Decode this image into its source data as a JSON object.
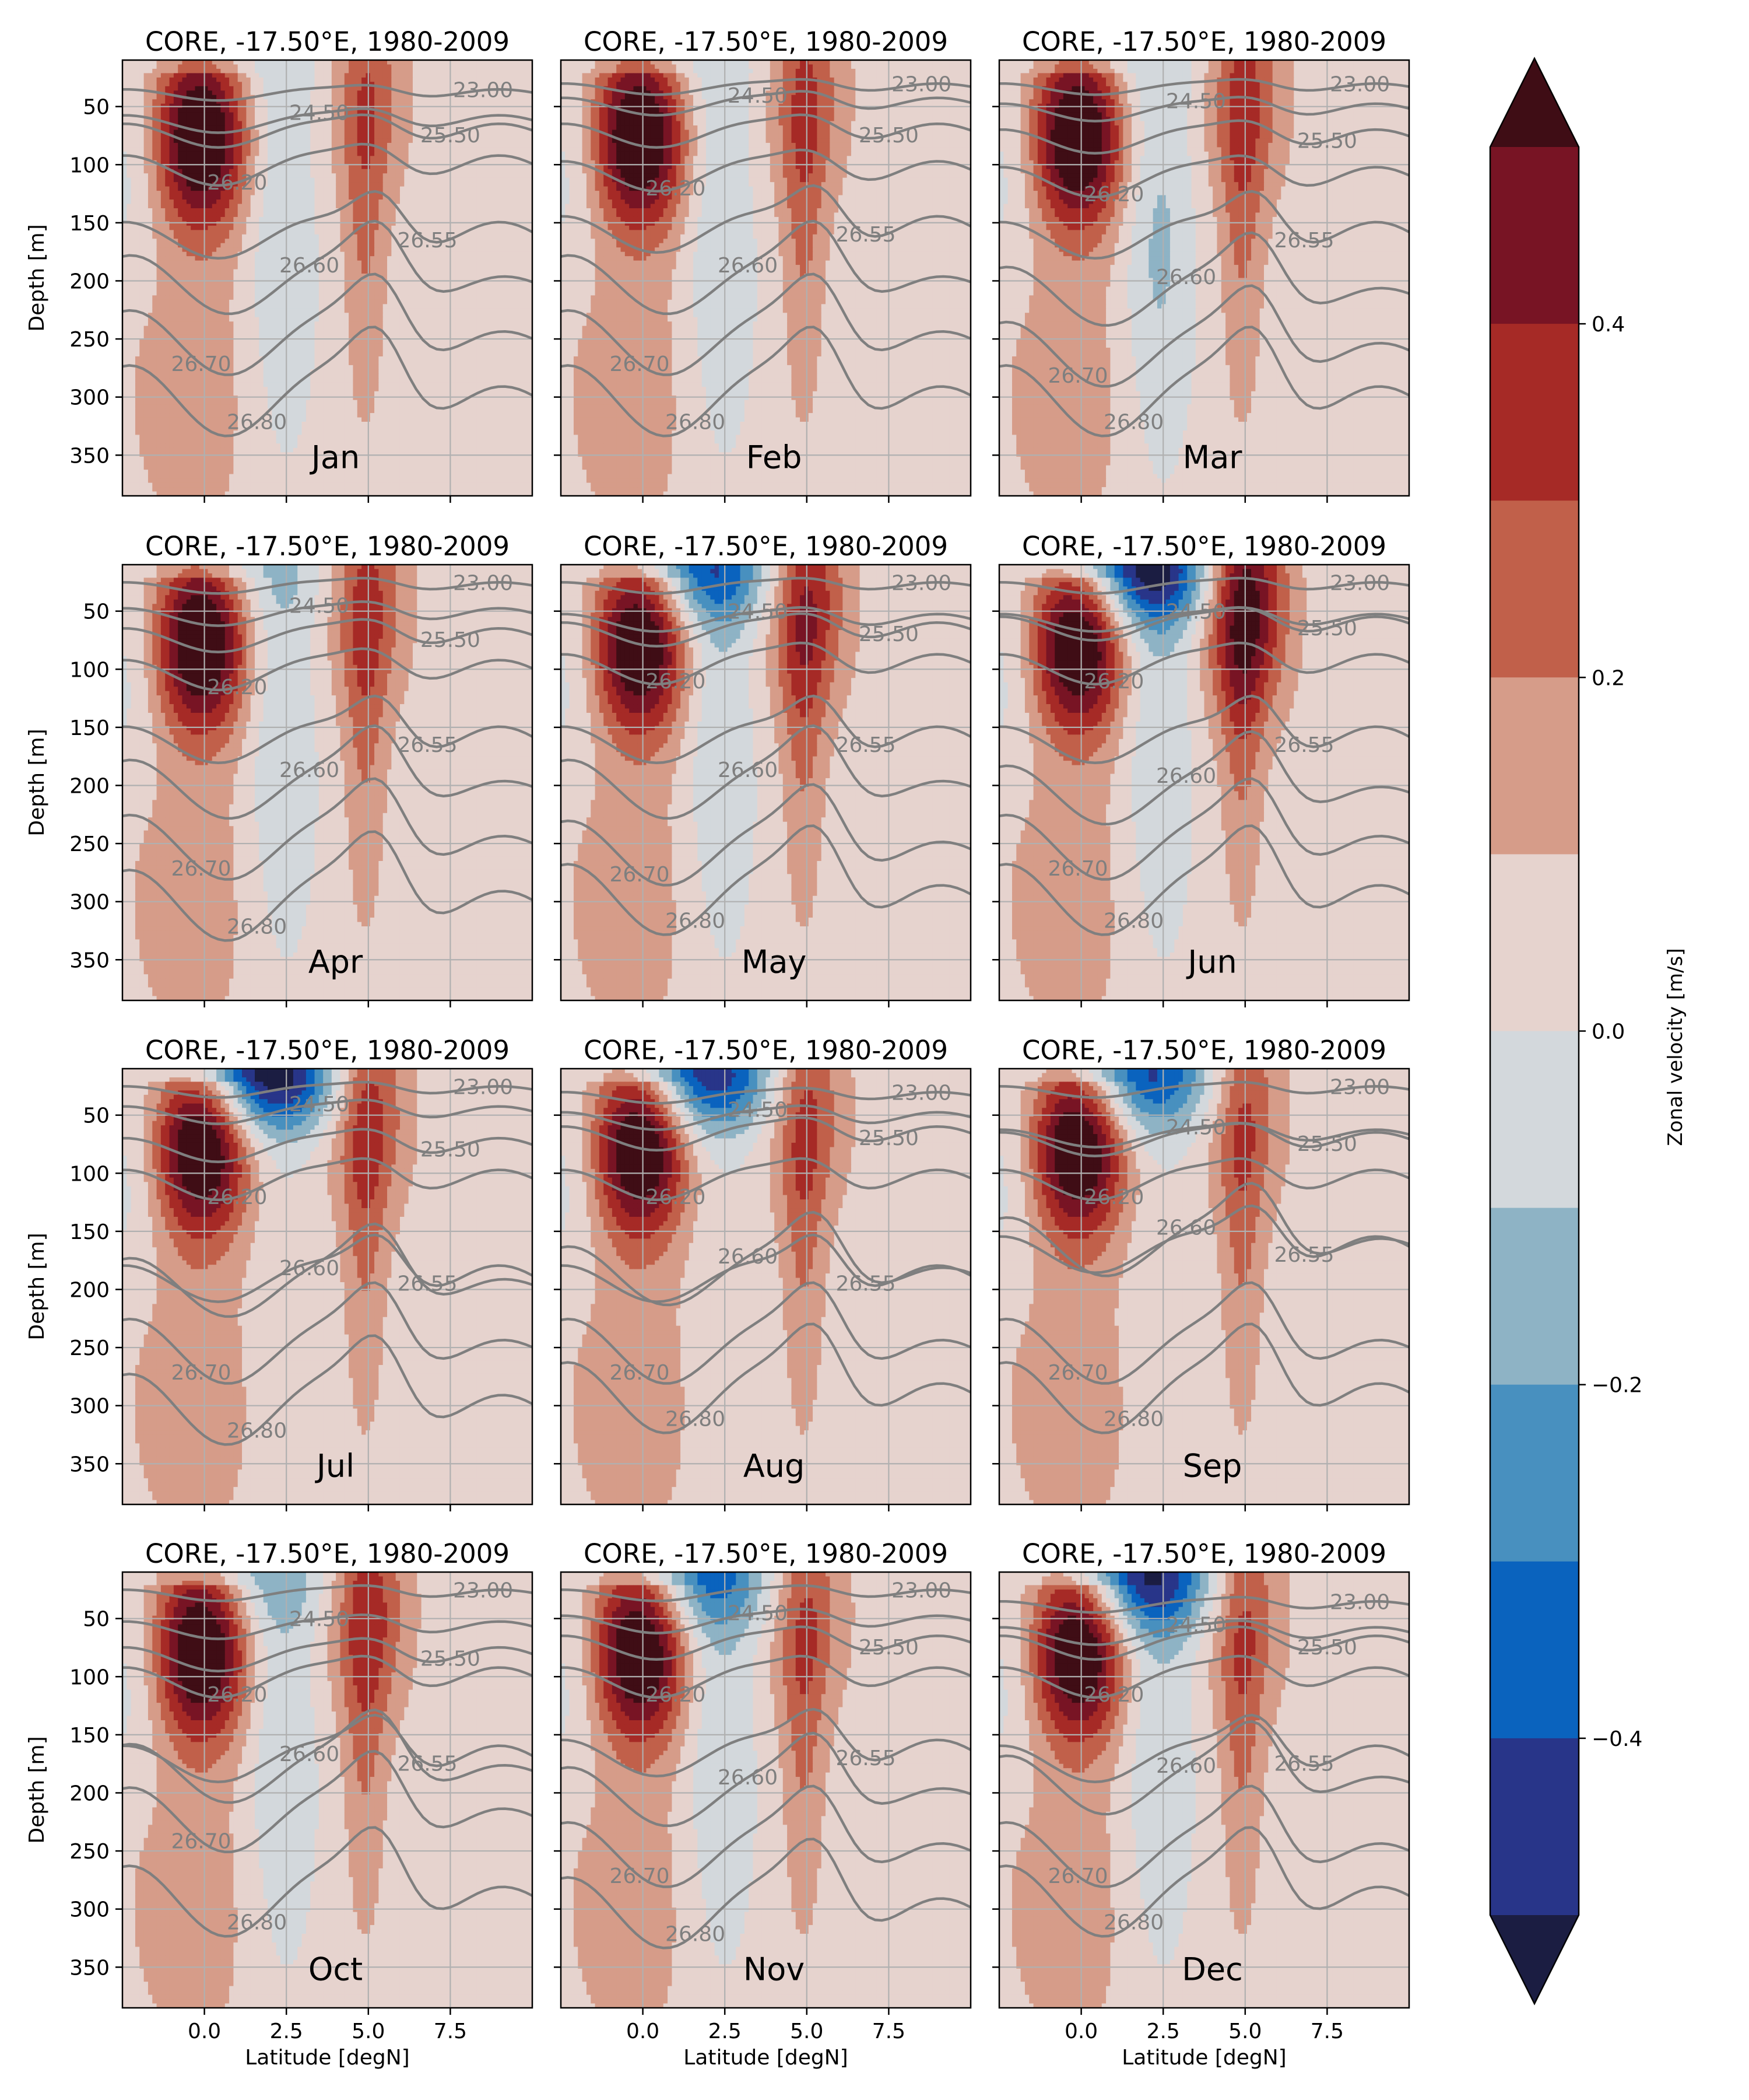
{
  "figure": {
    "colorbar": {
      "label": "Zonal velocity [m/s]",
      "ticks": [
        0.4,
        0.2,
        0.0,
        -0.2,
        -0.4
      ],
      "tick_labels": [
        "0.4",
        "0.2",
        "0.0",
        "−0.2",
        "−0.4"
      ],
      "levels": [
        -0.5,
        -0.4,
        -0.3,
        -0.2,
        -0.1,
        0.0,
        0.1,
        0.2,
        0.3,
        0.4,
        0.5
      ],
      "colors": [
        "#1b1d42",
        "#283589",
        "#0a63be",
        "#4890bf",
        "#8eb3c5",
        "#d3d8dc",
        "#e6d3ce",
        "#d69c89",
        "#c1604a",
        "#a62a26",
        "#781424",
        "#3f0d15"
      ]
    }
  },
  "chart_data": {
    "type": "heatmap",
    "description_values": "Zonal velocity (filled) with density contours (grey) at -17.50°E, climatological months 1980-2009",
    "xlabel": "Latitude [degN]",
    "ylabel": "Depth [m]",
    "xlim": [
      -2.5,
      10
    ],
    "ylim": [
      385,
      10
    ],
    "xticks": [
      0.0,
      2.5,
      5.0,
      7.5
    ],
    "xtick_labels": [
      "0.0",
      "2.5",
      "5.0",
      "7.5"
    ],
    "yticks": [
      50,
      100,
      150,
      200,
      250,
      300,
      350
    ],
    "ytick_labels": [
      "50",
      "100",
      "150",
      "200",
      "250",
      "300",
      "350"
    ],
    "grid": true,
    "panels": [
      {
        "title": "CORE,  -17.50°E, 1980-2009",
        "month": "Jan",
        "euc_speed": 0.55,
        "surface_westward": -0.05,
        "ncc_speed": 0.18,
        "sec_depth_jet": -0.15,
        "contours": [
          {
            "label": "23.00",
            "depth": 40
          },
          {
            "label": "24.50",
            "depth": 65
          },
          {
            "label": "25.50",
            "depth": 75
          },
          {
            "label": "26.20",
            "depth": 105
          },
          {
            "label": "26.55",
            "depth": 165
          },
          {
            "label": "26.60",
            "depth": 205
          },
          {
            "label": "26.70",
            "depth": 255
          },
          {
            "label": "26.80",
            "depth": 305
          }
        ]
      },
      {
        "title": "CORE,  -17.50°E, 1980-2009",
        "month": "Feb",
        "euc_speed": 0.55,
        "surface_westward": -0.05,
        "ncc_speed": 0.2,
        "sec_depth_jet": -0.15,
        "contours": [
          {
            "label": "23.00",
            "depth": 35
          },
          {
            "label": "24.50",
            "depth": 50
          },
          {
            "label": "25.50",
            "depth": 75
          },
          {
            "label": "26.20",
            "depth": 110
          },
          {
            "label": "26.55",
            "depth": 160
          },
          {
            "label": "26.60",
            "depth": 205
          },
          {
            "label": "26.70",
            "depth": 255
          },
          {
            "label": "26.80",
            "depth": 305
          }
        ]
      },
      {
        "title": "CORE,  -17.50°E, 1980-2009",
        "month": "Mar",
        "euc_speed": 0.55,
        "surface_westward": -0.05,
        "ncc_speed": 0.22,
        "sec_depth_jet": -0.18,
        "contours": [
          {
            "label": "23.00",
            "depth": 35
          },
          {
            "label": "24.50",
            "depth": 55
          },
          {
            "label": "25.50",
            "depth": 80
          },
          {
            "label": "26.20",
            "depth": 115
          },
          {
            "label": "26.55",
            "depth": 165
          },
          {
            "label": "26.60",
            "depth": 215
          },
          {
            "label": "26.70",
            "depth": 265
          },
          {
            "label": "26.80",
            "depth": 305
          }
        ]
      },
      {
        "title": "CORE,  -17.50°E, 1980-2009",
        "month": "Apr",
        "euc_speed": 0.55,
        "surface_westward": -0.1,
        "ncc_speed": 0.22,
        "sec_depth_jet": -0.15,
        "contours": [
          {
            "label": "23.00",
            "depth": 30
          },
          {
            "label": "24.50",
            "depth": 55
          },
          {
            "label": "25.50",
            "depth": 75
          },
          {
            "label": "26.20",
            "depth": 105
          },
          {
            "label": "26.55",
            "depth": 165
          },
          {
            "label": "26.60",
            "depth": 205
          },
          {
            "label": "26.70",
            "depth": 255
          },
          {
            "label": "26.80",
            "depth": 305
          }
        ]
      },
      {
        "title": "CORE,  -17.50°E, 1980-2009",
        "month": "May",
        "euc_speed": 0.55,
        "surface_westward": -0.35,
        "ncc_speed": 0.3,
        "sec_depth_jet": -0.15,
        "contours": [
          {
            "label": "23.00",
            "depth": 30
          },
          {
            "label": "24.50",
            "depth": 60
          },
          {
            "label": "25.50",
            "depth": 70
          },
          {
            "label": "26.20",
            "depth": 100
          },
          {
            "label": "26.55",
            "depth": 165
          },
          {
            "label": "26.60",
            "depth": 205
          },
          {
            "label": "26.70",
            "depth": 260
          },
          {
            "label": "26.80",
            "depth": 300
          }
        ]
      },
      {
        "title": "CORE,  -17.50°E, 1980-2009",
        "month": "Jun",
        "euc_speed": 0.55,
        "surface_westward": -0.5,
        "ncc_speed": 0.45,
        "sec_depth_jet": -0.15,
        "contours": [
          {
            "label": "23.00",
            "depth": 30
          },
          {
            "label": "24.50",
            "depth": 60
          },
          {
            "label": "25.50",
            "depth": 65
          },
          {
            "label": "26.20",
            "depth": 100
          },
          {
            "label": "26.55",
            "depth": 165
          },
          {
            "label": "26.60",
            "depth": 210
          },
          {
            "label": "26.70",
            "depth": 255
          },
          {
            "label": "26.80",
            "depth": 300
          }
        ]
      },
      {
        "title": "CORE,  -17.50°E, 1980-2009",
        "month": "Jul",
        "euc_speed": 0.55,
        "surface_westward": -0.55,
        "ncc_speed": 0.25,
        "sec_depth_jet": -0.05,
        "contours": [
          {
            "label": "23.00",
            "depth": 30
          },
          {
            "label": "24.50",
            "depth": 50
          },
          {
            "label": "25.50",
            "depth": 80
          },
          {
            "label": "26.20",
            "depth": 110
          },
          {
            "label": "26.55",
            "depth": 195
          },
          {
            "label": "26.60",
            "depth": 200
          },
          {
            "label": "26.70",
            "depth": 255
          },
          {
            "label": "26.80",
            "depth": 305
          }
        ]
      },
      {
        "title": "CORE,  -17.50°E, 1980-2009",
        "month": "Aug",
        "euc_speed": 0.55,
        "surface_westward": -0.45,
        "ncc_speed": 0.22,
        "sec_depth_jet": -0.05,
        "contours": [
          {
            "label": "23.00",
            "depth": 35
          },
          {
            "label": "24.50",
            "depth": 55
          },
          {
            "label": "25.50",
            "depth": 70
          },
          {
            "label": "26.20",
            "depth": 110
          },
          {
            "label": "26.55",
            "depth": 195
          },
          {
            "label": "26.60",
            "depth": 190
          },
          {
            "label": "26.70",
            "depth": 255
          },
          {
            "label": "26.80",
            "depth": 295
          }
        ]
      },
      {
        "title": "CORE,  -17.50°E, 1980-2009",
        "month": "Sep",
        "euc_speed": 0.55,
        "surface_westward": -0.4,
        "ncc_speed": 0.2,
        "sec_depth_jet": -0.05,
        "contours": [
          {
            "label": "23.00",
            "depth": 30
          },
          {
            "label": "24.50",
            "depth": 70
          },
          {
            "label": "25.50",
            "depth": 75
          },
          {
            "label": "26.20",
            "depth": 110
          },
          {
            "label": "26.55",
            "depth": 170
          },
          {
            "label": "26.60",
            "depth": 165
          },
          {
            "label": "26.70",
            "depth": 255
          },
          {
            "label": "26.80",
            "depth": 295
          }
        ]
      },
      {
        "title": "CORE,  -17.50°E, 1980-2009",
        "month": "Oct",
        "euc_speed": 0.55,
        "surface_westward": -0.15,
        "ncc_speed": 0.25,
        "sec_depth_jet": -0.15,
        "contours": [
          {
            "label": "23.00",
            "depth": 30
          },
          {
            "label": "24.50",
            "depth": 60
          },
          {
            "label": "25.50",
            "depth": 85
          },
          {
            "label": "26.20",
            "depth": 105
          },
          {
            "label": "26.55",
            "depth": 175
          },
          {
            "label": "26.60",
            "depth": 185
          },
          {
            "label": "26.70",
            "depth": 225
          },
          {
            "label": "26.80",
            "depth": 295
          }
        ]
      },
      {
        "title": "CORE,  -17.50°E, 1980-2009",
        "month": "Nov",
        "euc_speed": 0.55,
        "surface_westward": -0.3,
        "ncc_speed": 0.2,
        "sec_depth_jet": -0.15,
        "contours": [
          {
            "label": "23.00",
            "depth": 30
          },
          {
            "label": "24.50",
            "depth": 55
          },
          {
            "label": "25.50",
            "depth": 75
          },
          {
            "label": "26.20",
            "depth": 105
          },
          {
            "label": "26.55",
            "depth": 170
          },
          {
            "label": "26.60",
            "depth": 205
          },
          {
            "label": "26.70",
            "depth": 255
          },
          {
            "label": "26.80",
            "depth": 305
          }
        ]
      },
      {
        "title": "CORE,  -17.50°E, 1980-2009",
        "month": "Dec",
        "euc_speed": 0.55,
        "surface_westward": -0.45,
        "ncc_speed": 0.2,
        "sec_depth_jet": -0.15,
        "contours": [
          {
            "label": "23.00",
            "depth": 40
          },
          {
            "label": "24.50",
            "depth": 65
          },
          {
            "label": "25.50",
            "depth": 75
          },
          {
            "label": "26.20",
            "depth": 105
          },
          {
            "label": "26.55",
            "depth": 175
          },
          {
            "label": "26.60",
            "depth": 195
          },
          {
            "label": "26.70",
            "depth": 255
          },
          {
            "label": "26.80",
            "depth": 295
          }
        ]
      }
    ]
  }
}
